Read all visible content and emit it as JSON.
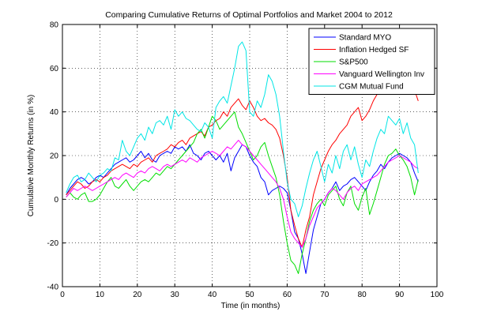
{
  "chart_data": {
    "type": "line",
    "title": "Comparing Cumulative Returns of Optimal Portfolios and Market 2004 to 2012",
    "xlabel": "Time (in months)",
    "ylabel": "Cumulative Monthly Returns (in %)",
    "xlim": [
      0,
      100
    ],
    "ylim": [
      -40,
      80
    ],
    "xticks": [
      0,
      10,
      20,
      30,
      40,
      50,
      60,
      70,
      80,
      90,
      100
    ],
    "yticks": [
      -40,
      -20,
      0,
      20,
      40,
      60,
      80
    ],
    "grid": true,
    "legend": "top-right",
    "series": [
      {
        "name": "Standard MYO",
        "color": "#0000ff",
        "x": [
          1,
          2,
          3,
          4,
          5,
          6,
          7,
          8,
          9,
          10,
          11,
          12,
          13,
          14,
          15,
          16,
          17,
          18,
          19,
          20,
          21,
          22,
          23,
          24,
          25,
          26,
          27,
          28,
          29,
          30,
          31,
          32,
          33,
          34,
          35,
          36,
          37,
          38,
          39,
          40,
          41,
          42,
          43,
          44,
          45,
          46,
          47,
          48,
          49,
          50,
          51,
          52,
          53,
          54,
          55,
          56,
          57,
          58,
          59,
          60,
          61,
          62,
          63,
          64,
          65,
          66,
          67,
          68,
          69,
          70,
          71,
          72,
          73,
          74,
          75,
          76,
          77,
          78,
          79,
          80,
          81,
          82,
          83,
          84,
          85,
          86,
          87,
          88,
          89,
          90,
          91,
          92,
          93,
          94,
          95
        ],
        "y": [
          2,
          5,
          7,
          9,
          10,
          9,
          7,
          8,
          10,
          11,
          10,
          12,
          14,
          16,
          17,
          18,
          19,
          17,
          18,
          20,
          22,
          19,
          21,
          18,
          17,
          20,
          21,
          22,
          21,
          24,
          23,
          24,
          22,
          25,
          21,
          20,
          18,
          21,
          22,
          20,
          18,
          20,
          17,
          21,
          13,
          19,
          22,
          25,
          24,
          20,
          17,
          15,
          10,
          8,
          2,
          4,
          5,
          6,
          5,
          3,
          -5,
          -15,
          -18,
          -25,
          -34,
          -24,
          -14,
          -8,
          -2,
          0,
          3,
          5,
          8,
          4,
          6,
          7,
          9,
          10,
          8,
          6,
          4,
          8,
          11,
          13,
          16,
          14,
          17,
          19,
          20,
          21,
          20,
          19,
          17,
          12,
          8
        ]
      },
      {
        "name": "Inflation Hedged SF",
        "color": "#ff0000",
        "x": [
          1,
          2,
          3,
          4,
          5,
          6,
          7,
          8,
          9,
          10,
          11,
          12,
          13,
          14,
          15,
          16,
          17,
          18,
          19,
          20,
          21,
          22,
          23,
          24,
          25,
          26,
          27,
          28,
          29,
          30,
          31,
          32,
          33,
          34,
          35,
          36,
          37,
          38,
          39,
          40,
          41,
          42,
          43,
          44,
          45,
          46,
          47,
          48,
          49,
          50,
          51,
          52,
          53,
          54,
          55,
          56,
          57,
          58,
          59,
          60,
          61,
          62,
          63,
          64,
          65,
          66,
          67,
          68,
          69,
          70,
          71,
          72,
          73,
          74,
          75,
          76,
          77,
          78,
          79,
          80,
          81,
          82,
          83,
          84,
          85,
          86,
          87,
          88,
          89,
          90,
          91,
          92,
          93,
          94,
          95
        ],
        "y": [
          2,
          4,
          6,
          8,
          7,
          5,
          6,
          8,
          9,
          8,
          10,
          11,
          13,
          14,
          15,
          16,
          15,
          14,
          16,
          15,
          17,
          18,
          19,
          17,
          20,
          21,
          22,
          23,
          25,
          24,
          26,
          27,
          25,
          28,
          29,
          30,
          31,
          29,
          33,
          34,
          36,
          37,
          40,
          38,
          42,
          44,
          46,
          43,
          41,
          45,
          42,
          38,
          36,
          37,
          35,
          34,
          32,
          28,
          20,
          10,
          -5,
          -12,
          -18,
          -22,
          -14,
          -8,
          2,
          8,
          14,
          18,
          22,
          25,
          27,
          30,
          32,
          34,
          38,
          40,
          42,
          36,
          38,
          41,
          45,
          48,
          50,
          52,
          54,
          55,
          58,
          60,
          62,
          58,
          55,
          50,
          45
        ]
      },
      {
        "name": "S&P500",
        "color": "#00dd00",
        "x": [
          1,
          2,
          3,
          4,
          5,
          6,
          7,
          8,
          9,
          10,
          11,
          12,
          13,
          14,
          15,
          16,
          17,
          18,
          19,
          20,
          21,
          22,
          23,
          24,
          25,
          26,
          27,
          28,
          29,
          30,
          31,
          32,
          33,
          34,
          35,
          36,
          37,
          38,
          39,
          40,
          41,
          42,
          43,
          44,
          45,
          46,
          47,
          48,
          49,
          50,
          51,
          52,
          53,
          54,
          55,
          56,
          57,
          58,
          59,
          60,
          61,
          62,
          63,
          64,
          65,
          66,
          67,
          68,
          69,
          70,
          71,
          72,
          73,
          74,
          75,
          76,
          77,
          78,
          79,
          80,
          81,
          82,
          83,
          84,
          85,
          86,
          87,
          88,
          89,
          90,
          91,
          92,
          93,
          94,
          95
        ],
        "y": [
          1,
          3,
          1,
          0,
          2,
          3,
          -1,
          -1,
          0,
          2,
          5,
          8,
          10,
          6,
          5,
          7,
          9,
          6,
          4,
          6,
          8,
          9,
          8,
          10,
          12,
          11,
          13,
          15,
          14,
          16,
          18,
          20,
          22,
          24,
          26,
          30,
          32,
          28,
          33,
          38,
          36,
          32,
          34,
          36,
          38,
          40,
          33,
          30,
          26,
          22,
          18,
          20,
          24,
          26,
          20,
          15,
          10,
          2,
          -10,
          -20,
          -28,
          -30,
          -34,
          -25,
          -18,
          -10,
          -5,
          -2,
          0,
          -3,
          2,
          4,
          6,
          0,
          -3,
          3,
          6,
          -2,
          -5,
          1,
          5,
          -7,
          -2,
          4,
          10,
          16,
          20,
          21,
          23,
          20,
          18,
          15,
          10,
          2,
          9
        ]
      },
      {
        "name": "Vanguard Wellington Inv",
        "color": "#ff00ff",
        "x": [
          1,
          2,
          3,
          4,
          5,
          6,
          7,
          8,
          9,
          10,
          11,
          12,
          13,
          14,
          15,
          16,
          17,
          18,
          19,
          20,
          21,
          22,
          23,
          24,
          25,
          26,
          27,
          28,
          29,
          30,
          31,
          32,
          33,
          34,
          35,
          36,
          37,
          38,
          39,
          40,
          41,
          42,
          43,
          44,
          45,
          46,
          47,
          48,
          49,
          50,
          51,
          52,
          53,
          54,
          55,
          56,
          57,
          58,
          59,
          60,
          61,
          62,
          63,
          64,
          65,
          66,
          67,
          68,
          69,
          70,
          71,
          72,
          73,
          74,
          75,
          76,
          77,
          78,
          79,
          80,
          81,
          82,
          83,
          84,
          85,
          86,
          87,
          88,
          89,
          90,
          91,
          92,
          93,
          94,
          95
        ],
        "y": [
          1,
          3,
          5,
          4,
          5,
          6,
          5,
          4,
          5,
          6,
          7,
          8,
          9,
          10,
          9,
          11,
          12,
          11,
          10,
          12,
          13,
          12,
          14,
          15,
          14,
          13,
          15,
          16,
          15,
          16,
          17,
          18,
          17,
          19,
          18,
          17,
          19,
          20,
          21,
          22,
          21,
          20,
          22,
          24,
          23,
          25,
          27,
          25,
          24,
          22,
          20,
          18,
          16,
          14,
          12,
          10,
          8,
          5,
          0,
          -8,
          -15,
          -18,
          -20,
          -22,
          -18,
          -12,
          -8,
          -4,
          -2,
          0,
          3,
          5,
          4,
          2,
          0,
          3,
          5,
          6,
          4,
          7,
          8,
          9,
          10,
          11,
          13,
          15,
          17,
          18,
          19,
          20,
          19,
          18,
          17,
          15,
          14
        ]
      },
      {
        "name": "CGM Mutual Fund",
        "color": "#00e5e5",
        "x": [
          1,
          2,
          3,
          4,
          5,
          6,
          7,
          8,
          9,
          10,
          11,
          12,
          13,
          14,
          15,
          16,
          17,
          18,
          19,
          20,
          21,
          22,
          23,
          24,
          25,
          26,
          27,
          28,
          29,
          30,
          31,
          32,
          33,
          34,
          35,
          36,
          37,
          38,
          39,
          40,
          41,
          42,
          43,
          44,
          45,
          46,
          47,
          48,
          49,
          50,
          51,
          52,
          53,
          54,
          55,
          56,
          57,
          58,
          59,
          60,
          61,
          62,
          63,
          64,
          65,
          66,
          67,
          68,
          69,
          70,
          71,
          72,
          73,
          74,
          75,
          76,
          77,
          78,
          79,
          80,
          81,
          82,
          83,
          84,
          85,
          86,
          87,
          88,
          89,
          90,
          91,
          92,
          93,
          94,
          95
        ],
        "y": [
          3,
          7,
          10,
          11,
          8,
          9,
          12,
          10,
          8,
          11,
          12,
          14,
          13,
          19,
          18,
          27,
          22,
          20,
          24,
          28,
          30,
          27,
          33,
          30,
          35,
          36,
          34,
          38,
          32,
          41,
          38,
          40,
          37,
          36,
          34,
          32,
          31,
          35,
          33,
          28,
          42,
          45,
          47,
          44,
          52,
          60,
          70,
          72,
          68,
          40,
          38,
          45,
          42,
          48,
          57,
          54,
          48,
          38,
          22,
          8,
          0,
          -2,
          -8,
          -3,
          5,
          12,
          18,
          22,
          15,
          8,
          16,
          12,
          20,
          14,
          22,
          25,
          18,
          24,
          16,
          10,
          18,
          15,
          22,
          28,
          32,
          30,
          38,
          36,
          34,
          37,
          30,
          35,
          28,
          25,
          12
        ]
      }
    ]
  }
}
